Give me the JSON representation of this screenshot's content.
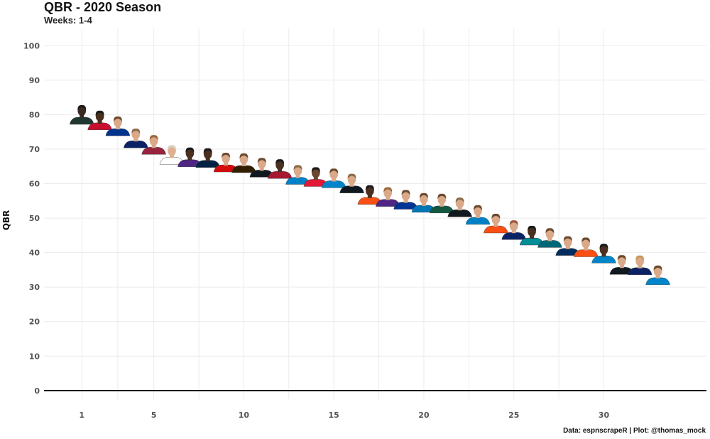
{
  "header": {
    "title": "QBR - 2020 Season",
    "subtitle": "Weeks: 1-4"
  },
  "caption": "Data: espnscrapeR | Plot: @thomas_mock",
  "chart_data": {
    "type": "scatter",
    "title": "QBR - 2020 Season",
    "subtitle": "Weeks: 1-4",
    "xlabel": "",
    "ylabel": "QBR",
    "xlim": [
      -1.1,
      35.7
    ],
    "ylim": [
      -2.5,
      105
    ],
    "x_ticks": [
      1,
      5,
      10,
      15,
      20,
      25,
      30
    ],
    "y_ticks": [
      0,
      10,
      20,
      30,
      40,
      50,
      60,
      70,
      80,
      90,
      100
    ],
    "grid": true,
    "marker": "player headshot",
    "points": [
      {
        "x": 1,
        "y": 77.6,
        "jersey": "#203731",
        "skin": "#3a2a1f",
        "hair": "#1a1a1a"
      },
      {
        "x": 2,
        "y": 76.0,
        "jersey": "#c8102e",
        "skin": "#4a3020",
        "hair": "#1a1a1a"
      },
      {
        "x": 3,
        "y": 74.3,
        "jersey": "#00338d",
        "skin": "#d9a98a",
        "hair": "#6b4a2e"
      },
      {
        "x": 4,
        "y": 70.8,
        "jersey": "#0b2265",
        "skin": "#d9a98a",
        "hair": "#8a6a4a"
      },
      {
        "x": 5,
        "y": 68.9,
        "jersey": "#97233f",
        "skin": "#d9a98a",
        "hair": "#9a6a3a"
      },
      {
        "x": 6,
        "y": 66.0,
        "jersey": "#ffffff",
        "skin": "#e0b090",
        "hair": "#d8d0c0"
      },
      {
        "x": 7,
        "y": 65.3,
        "jersey": "#4f2683",
        "skin": "#4a3020",
        "hair": "#1a1a1a"
      },
      {
        "x": 8,
        "y": 65.1,
        "jersey": "#002244",
        "skin": "#4a3020",
        "hair": "#1a1a1a"
      },
      {
        "x": 9,
        "y": 63.8,
        "jersey": "#d50a0a",
        "skin": "#d9a98a",
        "hair": "#6b4a2e"
      },
      {
        "x": 10,
        "y": 63.6,
        "jersey": "#311d00",
        "skin": "#d9a98a",
        "hair": "#6b4a2e"
      },
      {
        "x": 11,
        "y": 62.3,
        "jersey": "#101820",
        "skin": "#d9a98a",
        "hair": "#6b4a2e"
      },
      {
        "x": 12,
        "y": 61.9,
        "jersey": "#a71930",
        "skin": "#4a3020",
        "hair": "#1a1a1a"
      },
      {
        "x": 13,
        "y": 60.2,
        "jersey": "#0080c6",
        "skin": "#d9a98a",
        "hair": "#8a6a4a"
      },
      {
        "x": 14,
        "y": 59.6,
        "jersey": "#e31837",
        "skin": "#6a4530",
        "hair": "#1a1a1a"
      },
      {
        "x": 15,
        "y": 59.2,
        "jersey": "#0085ca",
        "skin": "#d9a98a",
        "hair": "#6b4a2e"
      },
      {
        "x": 16,
        "y": 57.7,
        "jersey": "#101820",
        "skin": "#d9a98a",
        "hair": "#8a6a4a"
      },
      {
        "x": 17,
        "y": 54.4,
        "jersey": "#fb4f14",
        "skin": "#4a3020",
        "hair": "#1a1a1a"
      },
      {
        "x": 18,
        "y": 53.8,
        "jersey": "#4f2683",
        "skin": "#d9a98a",
        "hair": "#9a6a3a"
      },
      {
        "x": 19,
        "y": 53.0,
        "jersey": "#003594",
        "skin": "#d9a98a",
        "hair": "#6b4a2e"
      },
      {
        "x": 20,
        "y": 52.1,
        "jersey": "#0076b6",
        "skin": "#d9a98a",
        "hair": "#6b4a2e"
      },
      {
        "x": 21,
        "y": 51.9,
        "jersey": "#125740",
        "skin": "#d9a98a",
        "hair": "#6b4a2e"
      },
      {
        "x": 22,
        "y": 50.8,
        "jersey": "#101820",
        "skin": "#d9a98a",
        "hair": "#8a6a4a"
      },
      {
        "x": 23,
        "y": 48.6,
        "jersey": "#0080c6",
        "skin": "#d9a98a",
        "hair": "#6b4a2e"
      },
      {
        "x": 24,
        "y": 46.1,
        "jersey": "#fb4f14",
        "skin": "#d9a98a",
        "hair": "#6b4a2e"
      },
      {
        "x": 25,
        "y": 44.2,
        "jersey": "#0b2265",
        "skin": "#d9a98a",
        "hair": "#9a5a3a"
      },
      {
        "x": 26,
        "y": 42.6,
        "jersey": "#008e97",
        "skin": "#4a3020",
        "hair": "#1a1a1a"
      },
      {
        "x": 27,
        "y": 41.9,
        "jersey": "#006778",
        "skin": "#d9a98a",
        "hair": "#6b4a2e"
      },
      {
        "x": 28,
        "y": 39.6,
        "jersey": "#002c5f",
        "skin": "#d9a98a",
        "hair": "#6b4a2e"
      },
      {
        "x": 29,
        "y": 39.2,
        "jersey": "#fb4f14",
        "skin": "#d9a98a",
        "hair": "#6b4a2e"
      },
      {
        "x": 30,
        "y": 37.4,
        "jersey": "#0085ca",
        "skin": "#4a3020",
        "hair": "#1a1a1a"
      },
      {
        "x": 31,
        "y": 34.1,
        "jersey": "#101820",
        "skin": "#d9a98a",
        "hair": "#6b4a2e"
      },
      {
        "x": 32,
        "y": 34.0,
        "jersey": "#0b2265",
        "skin": "#d9a98a",
        "hair": "#c89a5a"
      },
      {
        "x": 33,
        "y": 31.1,
        "jersey": "#0085ca",
        "skin": "#d9a98a",
        "hair": "#6b4a2e"
      }
    ],
    "colors": {
      "grid": "#ebebeb",
      "zero_line": "#000000",
      "tick_text": "#555555",
      "title_text": "#111111"
    }
  }
}
